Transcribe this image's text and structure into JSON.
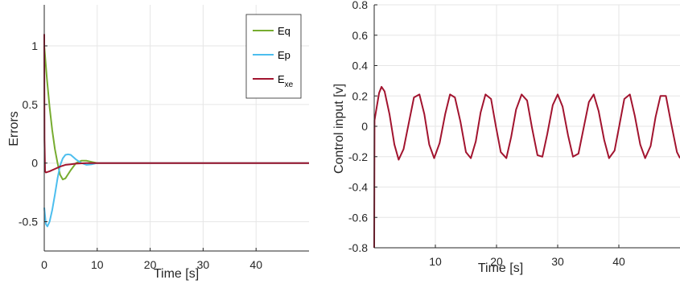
{
  "chart_data": [
    {
      "type": "line",
      "xlabel": "Time [s]",
      "ylabel": "Errors",
      "xlim": [
        0,
        50
      ],
      "ylim": [
        -0.75,
        1.35
      ],
      "xticks": [
        0,
        10,
        20,
        30,
        40
      ],
      "xtick_labels": [
        "0",
        "10",
        "20",
        "30",
        "40"
      ],
      "yticks": [
        -0.5,
        0,
        0.5,
        1
      ],
      "ytick_labels": [
        "-0.5",
        "0",
        "0.5",
        "1"
      ],
      "grid": true,
      "legend_position": "top-right",
      "series": [
        {
          "name": "Eq",
          "color": "#77ac30",
          "x": [
            0,
            0.5,
            1,
            1.5,
            2,
            2.5,
            3,
            3.5,
            4,
            5,
            6,
            7,
            8,
            9,
            10,
            12,
            15,
            20,
            50
          ],
          "y": [
            1.0,
            0.72,
            0.48,
            0.28,
            0.12,
            0.0,
            -0.1,
            -0.14,
            -0.13,
            -0.06,
            0.0,
            0.02,
            0.02,
            0.01,
            0.0,
            0.0,
            0.0,
            0.0,
            0.0
          ]
        },
        {
          "name": "Ep",
          "color": "#4dbeee",
          "x": [
            0,
            0.3,
            0.6,
            1,
            1.5,
            2,
            2.5,
            3,
            3.5,
            4,
            4.5,
            5,
            5.5,
            6,
            7,
            8,
            9,
            10,
            12,
            15,
            20,
            50
          ],
          "y": [
            -0.38,
            -0.52,
            -0.54,
            -0.5,
            -0.4,
            -0.27,
            -0.13,
            -0.02,
            0.04,
            0.07,
            0.075,
            0.07,
            0.05,
            0.03,
            0.0,
            -0.015,
            -0.01,
            0.0,
            0.0,
            0.0,
            0.0,
            0.0
          ]
        },
        {
          "name": "E_xe",
          "label_main": "E",
          "label_sub": "xe",
          "color": "#a2142f",
          "x": [
            0,
            0.05,
            0.15,
            0.3,
            1,
            2,
            3,
            4,
            5,
            6,
            8,
            10,
            15,
            20,
            50
          ],
          "y": [
            1.1,
            0.2,
            -0.07,
            -0.08,
            -0.07,
            -0.05,
            -0.03,
            -0.015,
            -0.01,
            -0.005,
            0.0,
            0.0,
            0.0,
            0.0,
            0.0
          ]
        }
      ]
    },
    {
      "type": "line",
      "xlabel": "Time [s]",
      "ylabel": "Control input [v]",
      "xlim": [
        0,
        50
      ],
      "ylim": [
        -0.8,
        0.8
      ],
      "xticks": [
        10,
        20,
        30,
        40
      ],
      "xtick_labels": [
        "10",
        "20",
        "30",
        "40"
      ],
      "yticks": [
        -0.8,
        -0.6,
        -0.4,
        -0.2,
        0,
        0.2,
        0.4,
        0.6,
        0.8
      ],
      "ytick_labels": [
        "-0.8",
        "-0.6",
        "-0.4",
        "-0.2",
        "0",
        "0.2",
        "0.4",
        "0.6",
        "0.8"
      ],
      "grid": true,
      "series": [
        {
          "color": "#a2142f",
          "description_values": {
            "start_value": -0.8,
            "first_peak": 0.26,
            "amplitude": 0.215,
            "period": 6.3
          },
          "x": [
            0,
            0.05,
            0.3,
            0.8,
            1.2,
            1.7,
            2.5,
            3.3,
            4.0,
            4.8,
            5.7,
            6.5,
            7.4,
            8.2,
            9.0,
            9.8,
            10.7,
            11.6,
            12.4,
            13.2,
            14.1,
            15.0,
            15.8,
            16.6,
            17.4,
            18.2,
            19.1,
            19.9,
            20.7,
            21.6,
            22.4,
            23.2,
            24.1,
            25.0,
            25.8,
            26.7,
            27.5,
            28.3,
            29.2,
            30.0,
            30.8,
            31.7,
            32.5,
            33.4,
            34.2,
            35.1,
            35.9,
            36.7,
            37.6,
            38.4,
            39.3,
            40.1,
            40.9,
            41.8,
            42.6,
            43.5,
            44.3,
            45.2,
            46.0,
            46.8,
            47.7,
            48.5,
            49.5,
            50
          ],
          "y": [
            -0.8,
            0.04,
            0.1,
            0.22,
            0.26,
            0.23,
            0.08,
            -0.12,
            -0.22,
            -0.15,
            0.03,
            0.19,
            0.21,
            0.08,
            -0.12,
            -0.21,
            -0.11,
            0.08,
            0.21,
            0.19,
            0.03,
            -0.17,
            -0.21,
            -0.1,
            0.09,
            0.21,
            0.18,
            0.0,
            -0.17,
            -0.21,
            -0.07,
            0.11,
            0.21,
            0.17,
            -0.01,
            -0.19,
            -0.2,
            -0.05,
            0.14,
            0.21,
            0.13,
            -0.06,
            -0.2,
            -0.18,
            -0.02,
            0.16,
            0.21,
            0.1,
            -0.09,
            -0.21,
            -0.16,
            0.01,
            0.18,
            0.21,
            0.07,
            -0.12,
            -0.21,
            -0.13,
            0.06,
            0.2,
            0.2,
            0.03,
            -0.17,
            -0.21
          ]
        }
      ]
    }
  ]
}
